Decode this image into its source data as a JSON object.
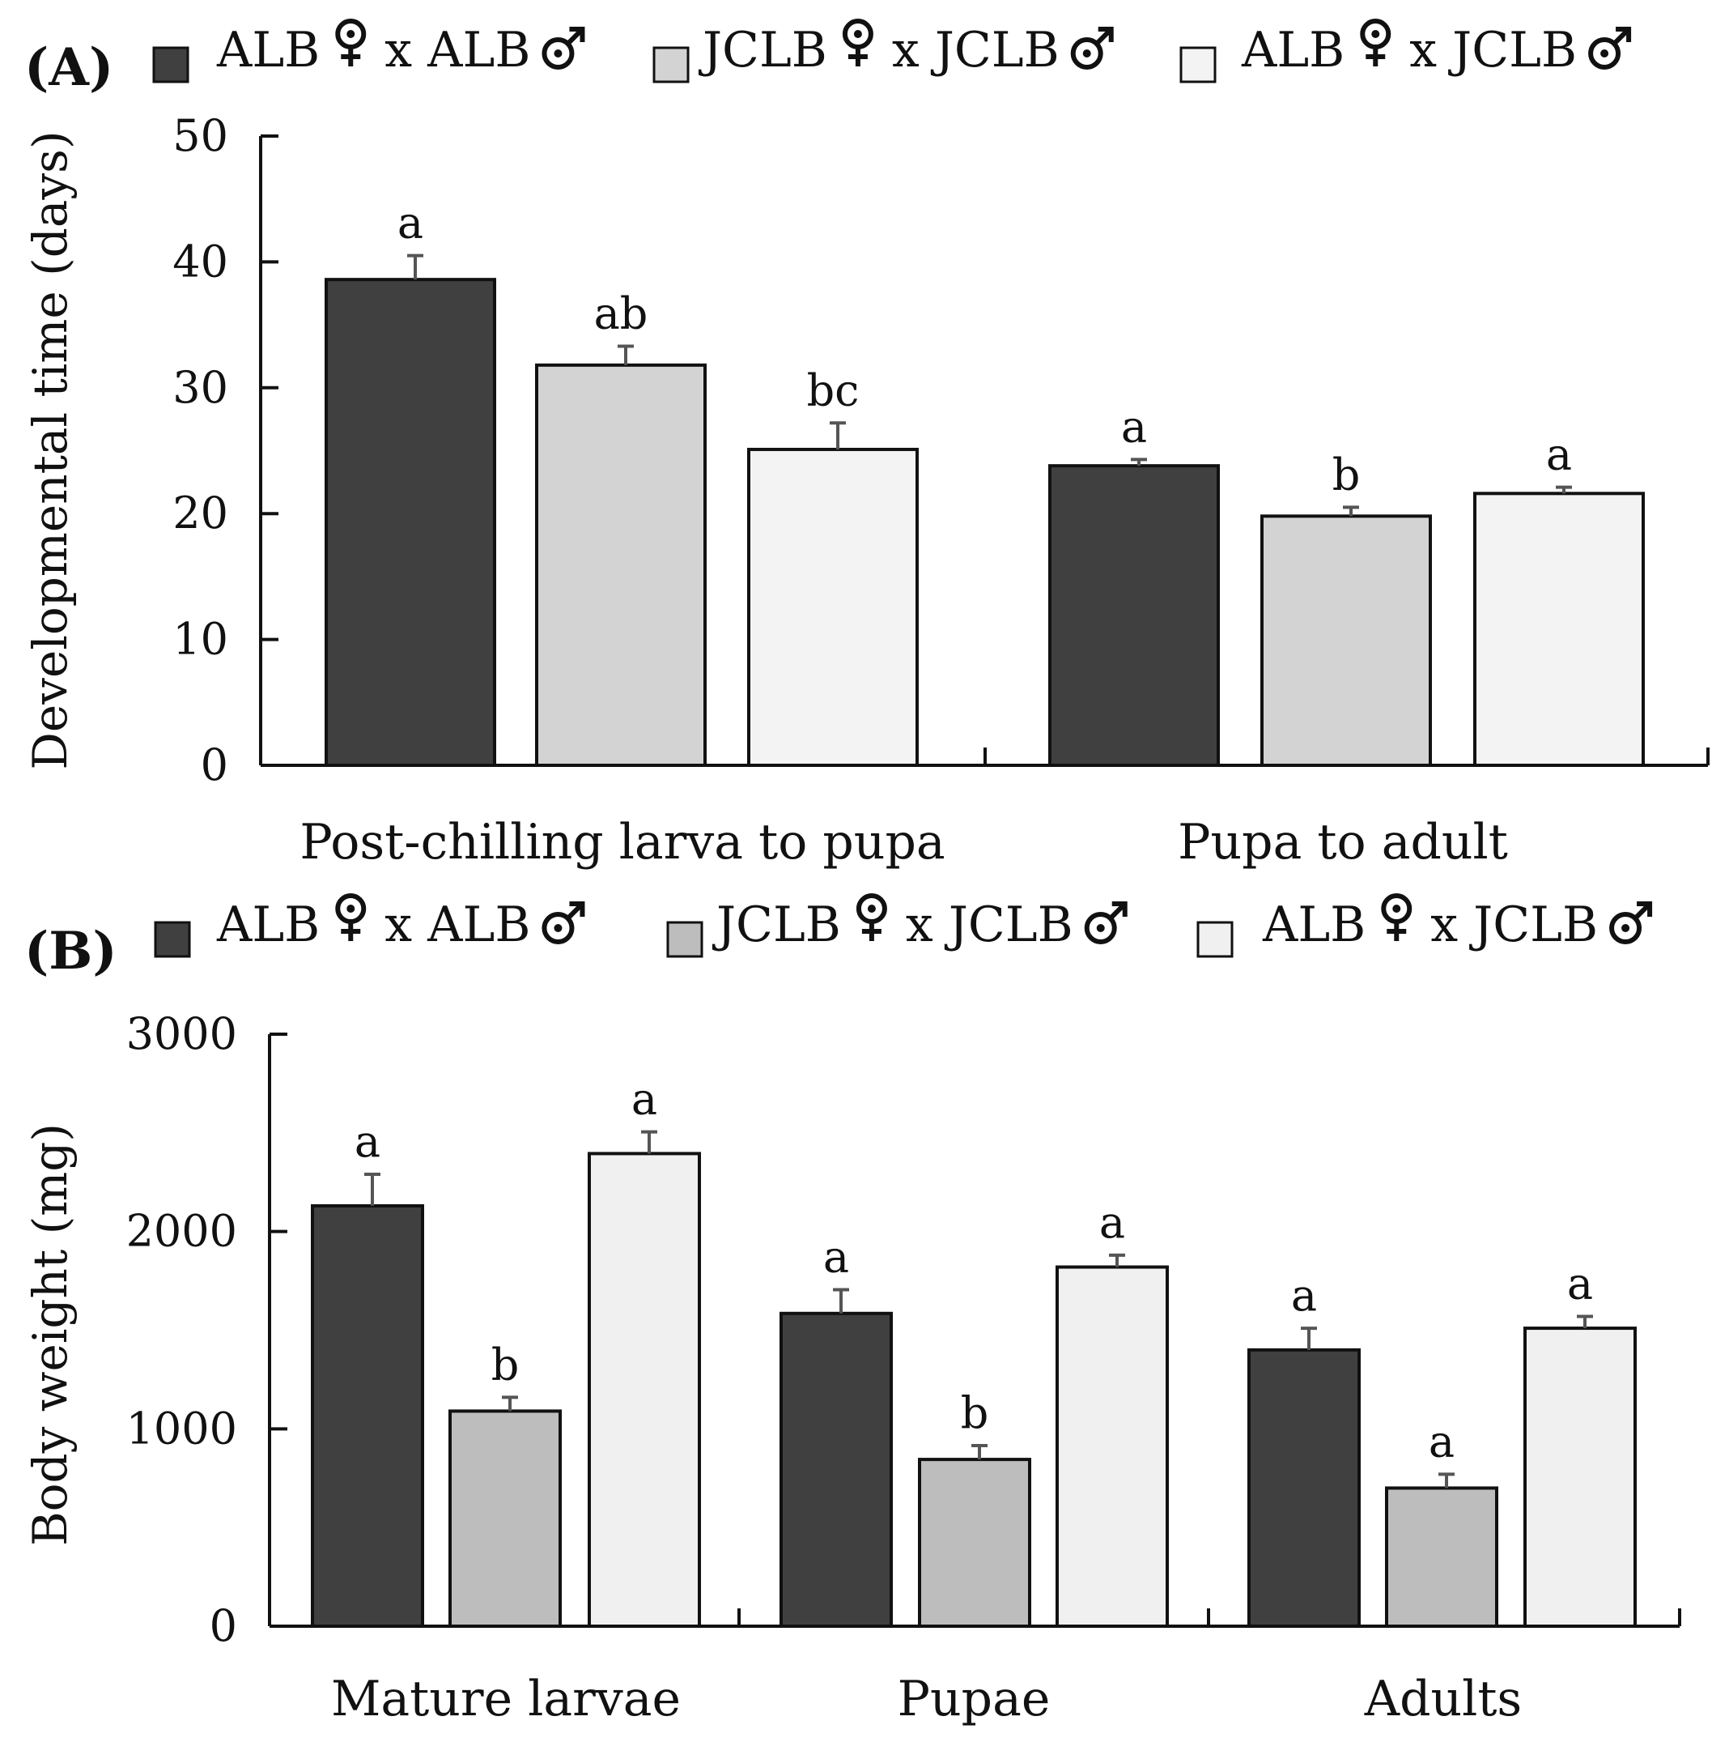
{
  "chart_data": [
    {
      "panel": "(A)",
      "type": "bar",
      "ylabel": "Developmental time (days)",
      "ylim": [
        0,
        50
      ],
      "yticks": [
        0,
        10,
        20,
        30,
        40,
        50
      ],
      "categories": [
        "Post-chilling larva to pupa",
        "Pupa to adult"
      ],
      "legend": {
        "position": "top",
        "entries": [
          {
            "parts": [
              "ALB",
              "♀",
              "x ALB",
              "♂"
            ],
            "color": "#404040"
          },
          {
            "parts": [
              "JCLB",
              "♀",
              "x JCLB",
              "♂"
            ],
            "color": "#d3d3d3"
          },
          {
            "parts": [
              "ALB",
              "♀",
              "x JCLB",
              "♂"
            ],
            "color": "#f3f3f3"
          }
        ]
      },
      "series": [
        {
          "name": "ALB ♀ x ALB ♂",
          "color": "#404040",
          "values": [
            38.6,
            23.8
          ],
          "errors": [
            1.9,
            0.5
          ],
          "letters": [
            "a",
            "a"
          ]
        },
        {
          "name": "JCLB ♀ x JCLB ♂",
          "color": "#d3d3d3",
          "values": [
            31.8,
            19.8
          ],
          "errors": [
            1.5,
            0.7
          ],
          "letters": [
            "ab",
            "b"
          ]
        },
        {
          "name": "ALB ♀ x JCLB ♂",
          "color": "#f3f3f3",
          "values": [
            25.1,
            21.6
          ],
          "errors": [
            2.1,
            0.5
          ],
          "letters": [
            "bc",
            "a"
          ]
        }
      ]
    },
    {
      "panel": "(B)",
      "type": "bar",
      "ylabel": "Body weight (mg)",
      "ylim": [
        0,
        3000
      ],
      "yticks": [
        0,
        1000,
        2000,
        3000
      ],
      "categories": [
        "Mature larvae",
        "Pupae",
        "Adults"
      ],
      "legend": {
        "position": "top",
        "entries": [
          {
            "parts": [
              "ALB",
              "♀",
              "x ALB",
              "♂"
            ],
            "color": "#404040"
          },
          {
            "parts": [
              "JCLB",
              "♀",
              "x JCLB",
              "♂"
            ],
            "color": "#bdbdbd"
          },
          {
            "parts": [
              "ALB",
              "♀",
              "x JCLB",
              "♂"
            ],
            "color": "#f0f0f0"
          }
        ]
      },
      "series": [
        {
          "name": "ALB ♀ x ALB ♂",
          "color": "#404040",
          "values": [
            2130,
            1585,
            1400
          ],
          "errors": [
            160,
            120,
            110
          ],
          "letters": [
            "a",
            "a",
            "a"
          ]
        },
        {
          "name": "JCLB ♀ x JCLB ♂",
          "color": "#bdbdbd",
          "values": [
            1090,
            845,
            700
          ],
          "errors": [
            70,
            70,
            70
          ],
          "letters": [
            "b",
            "b",
            "a"
          ]
        },
        {
          "name": "ALB ♀ x JCLB ♂",
          "color": "#f0f0f0",
          "values": [
            2395,
            1820,
            1510
          ],
          "errors": [
            110,
            60,
            60
          ],
          "letters": [
            "a",
            "a",
            "a"
          ]
        }
      ]
    }
  ]
}
